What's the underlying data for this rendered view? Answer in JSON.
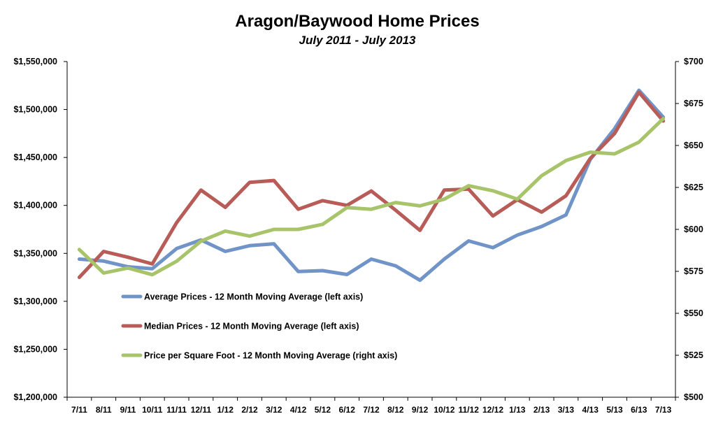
{
  "chart_data": {
    "type": "line",
    "title": "Aragon/Baywood Home Prices",
    "subtitle": "July 2011 - July 2013",
    "categories": [
      "7/11",
      "8/11",
      "9/11",
      "10/11",
      "11/11",
      "12/11",
      "1/12",
      "2/12",
      "3/12",
      "4/12",
      "5/12",
      "6/12",
      "7/12",
      "8/12",
      "9/12",
      "10/12",
      "11/12",
      "12/12",
      "1/13",
      "2/13",
      "3/13",
      "4/13",
      "5/13",
      "6/13",
      "7/13"
    ],
    "left_axis": {
      "ylim": [
        1200000,
        1550000
      ],
      "ticks": [
        1200000,
        1250000,
        1300000,
        1350000,
        1400000,
        1450000,
        1500000,
        1550000
      ],
      "tick_labels": [
        "$1,200,000",
        "$1,250,000",
        "$1,300,000",
        "$1,350,000",
        "$1,400,000",
        "$1,450,000",
        "$1,500,000",
        "$1,550,000"
      ]
    },
    "right_axis": {
      "ylim": [
        500,
        700
      ],
      "ticks": [
        500,
        525,
        550,
        575,
        600,
        625,
        650,
        675,
        700
      ],
      "tick_labels": [
        "$500",
        "$525",
        "$550",
        "$575",
        "$600",
        "$625",
        "$650",
        "$675",
        "$700"
      ]
    },
    "series": [
      {
        "name": "Average Prices - 12 Month Moving Average (left axis)",
        "axis": "left",
        "color": "#7094c8",
        "values": [
          1344000,
          1342000,
          1336000,
          1334000,
          1355000,
          1364000,
          1352000,
          1358000,
          1360000,
          1331000,
          1332000,
          1328000,
          1344000,
          1337000,
          1322000,
          1344000,
          1363000,
          1356000,
          1369000,
          1378000,
          1390000,
          1448000,
          1480000,
          1520000,
          1492000
        ]
      },
      {
        "name": "Median Prices - 12 Month Moving Average (left axis)",
        "axis": "left",
        "color": "#b85c58",
        "values": [
          1325000,
          1352000,
          1346000,
          1339000,
          1382000,
          1416000,
          1398000,
          1424000,
          1426000,
          1396000,
          1405000,
          1400000,
          1415000,
          1395000,
          1374000,
          1416000,
          1417000,
          1389000,
          1406000,
          1393000,
          1410000,
          1449000,
          1475000,
          1518000,
          1488000
        ]
      },
      {
        "name": "Price per Square Foot - 12 Month Moving Average (right axis)",
        "axis": "right",
        "color": "#a8c46a",
        "values": [
          588,
          574,
          577,
          573,
          581,
          593,
          599,
          596,
          600,
          600,
          603,
          613,
          612,
          616,
          614,
          618,
          626,
          623,
          618,
          632,
          641,
          646,
          645,
          652,
          666
        ]
      }
    ],
    "legend": "lower-left inside plot",
    "grid": false
  }
}
